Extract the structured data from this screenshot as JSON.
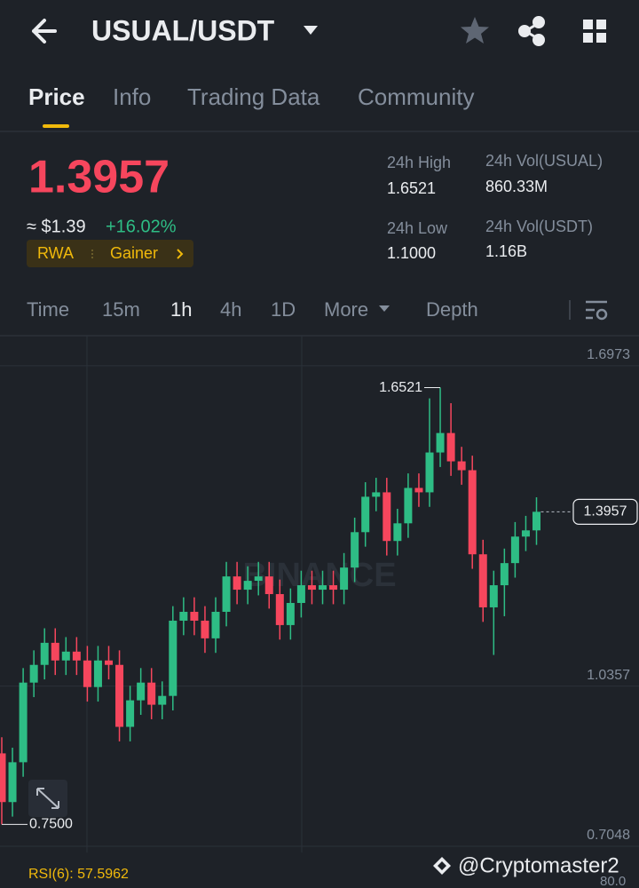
{
  "header": {
    "pair": "USUAL/USDT"
  },
  "tabs": [
    "Price",
    "Info",
    "Trading Data",
    "Community"
  ],
  "ticker": {
    "price": "1.3957",
    "usd": "≈ $1.39",
    "change": "+16.02%",
    "tags": [
      "RWA",
      "Gainer"
    ],
    "stats": [
      {
        "label": "24h High",
        "value": "1.6521"
      },
      {
        "label": "24h Vol(USUAL)",
        "value": "860.33M"
      },
      {
        "label": "24h Low",
        "value": "1.1000"
      },
      {
        "label": "24h Vol(USDT)",
        "value": "1.16B"
      }
    ]
  },
  "intervals": [
    "Time",
    "15m",
    "1h",
    "4h",
    "1D",
    "More",
    "Depth"
  ],
  "chart_data": {
    "type": "candlestick",
    "watermark": "BINANCE",
    "up_color": "#2ebd85",
    "down_color": "#f6465d",
    "ylim": [
      0.692,
      1.7595
    ],
    "yticks": [
      0.7048,
      1.0357,
      1.6973
    ],
    "grid": true,
    "open": [
      0.8967,
      0.7961,
      0.8784,
      1.0429,
      1.0795,
      1.1251,
      1.0886,
      1.1069,
      1.0886,
      1.0337,
      1.0886,
      1.0795,
      0.9515,
      1.0063,
      1.0429,
      0.9972,
      1.0154,
      1.1708,
      1.1891,
      1.1708,
      1.1343,
      1.1891,
      1.2622,
      1.2348,
      1.2531,
      1.2622,
      1.2257,
      1.1617,
      1.2074,
      1.244,
      1.2348,
      1.244,
      1.2348,
      1.2805,
      1.3536,
      1.4268,
      1.4359,
      1.3354,
      1.3719,
      1.445,
      1.4359,
      1.5182,
      1.5584,
      1.4999,
      1.4816,
      1.3079,
      1.1983,
      1.244,
      1.2897,
      1.3445,
      1.3573
    ],
    "high": [
      0.93,
      0.9084,
      1.0729,
      1.1095,
      1.1551,
      1.1551,
      1.1369,
      1.1369,
      1.1186,
      1.1186,
      1.1186,
      1.1095,
      1.0363,
      1.0729,
      1.0729,
      1.0454,
      1.2008,
      1.2191,
      1.2191,
      1.2008,
      1.2191,
      1.2922,
      1.2922,
      1.2831,
      1.2922,
      1.2922,
      1.2557,
      1.2374,
      1.274,
      1.274,
      1.274,
      1.274,
      1.3105,
      1.3836,
      1.4568,
      1.4659,
      1.4659,
      1.4019,
      1.475,
      1.475,
      1.63,
      1.6521,
      1.62,
      1.5299,
      1.5116,
      1.3379,
      1.274,
      1.3197,
      1.3745,
      1.3873,
      1.4257
    ],
    "low": [
      0.75,
      0.7661,
      0.8484,
      1.0129,
      1.0495,
      1.0586,
      1.0586,
      1.0586,
      1.0037,
      1.0037,
      1.0495,
      0.9215,
      0.9215,
      0.9763,
      0.9672,
      0.9672,
      0.9854,
      1.1408,
      1.1408,
      1.1043,
      1.1043,
      1.1591,
      1.2048,
      1.2048,
      1.2231,
      1.1957,
      1.1317,
      1.1317,
      1.1774,
      1.2048,
      1.2048,
      1.2048,
      1.2048,
      1.2505,
      1.3236,
      1.3968,
      1.3054,
      1.3054,
      1.3419,
      1.4059,
      1.4059,
      1.4882,
      1.4699,
      1.4516,
      1.2779,
      1.1683,
      1.1,
      1.18,
      1.2597,
      1.3145,
      1.3273
    ],
    "close": [
      0.7961,
      0.8784,
      1.0429,
      1.0795,
      1.1251,
      1.0886,
      1.1069,
      1.0886,
      1.0337,
      1.0886,
      1.0795,
      0.9515,
      1.0063,
      1.0429,
      0.9972,
      1.0154,
      1.1708,
      1.1891,
      1.1708,
      1.1343,
      1.1891,
      1.2622,
      1.2348,
      1.2531,
      1.2622,
      1.2257,
      1.1617,
      1.2074,
      1.244,
      1.2348,
      1.244,
      1.2348,
      1.2805,
      1.3536,
      1.4268,
      1.4359,
      1.3354,
      1.3719,
      1.445,
      1.4359,
      1.5182,
      1.5584,
      1.4999,
      1.4816,
      1.3079,
      1.1983,
      1.244,
      1.2897,
      1.3445,
      1.3573,
      1.3957
    ],
    "annotations": [
      {
        "value": 1.6521,
        "label": "1.6521"
      },
      {
        "value": 0.75,
        "label": "0.7500"
      },
      {
        "value": 1.3957,
        "label": "1.3957"
      }
    ]
  },
  "indicator": {
    "label": "RSI(6): 57.5962",
    "axis_label": "80.0"
  },
  "credit": "@Cryptomaster2"
}
